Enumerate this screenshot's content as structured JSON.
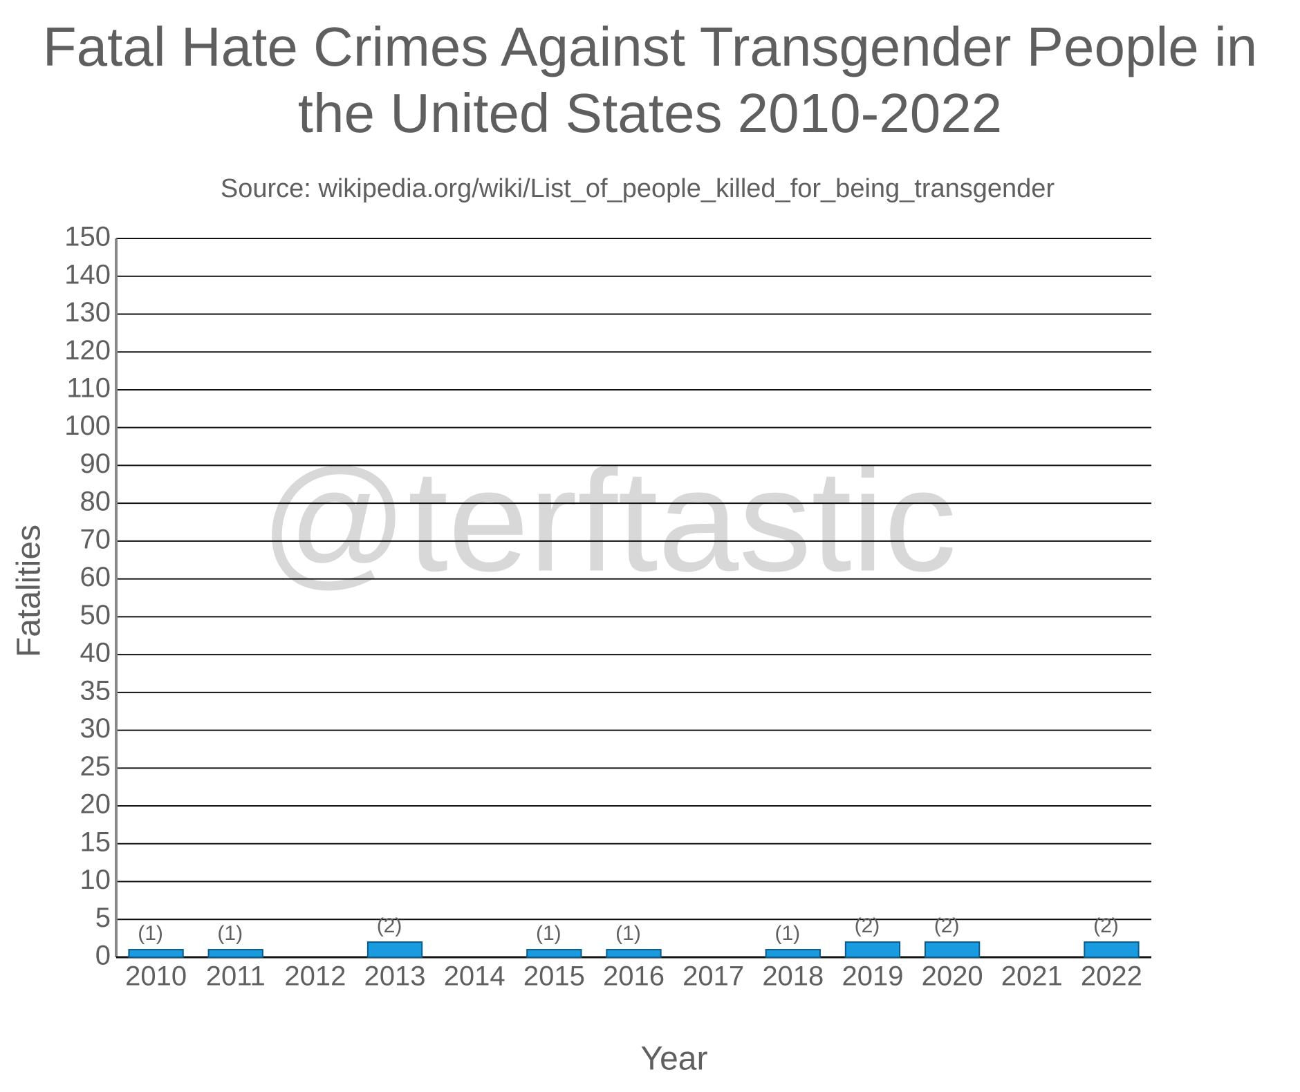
{
  "chart_data": {
    "type": "bar",
    "title": "Fatal Hate Crimes Against Transgender People in the United States 2010-2022",
    "subtitle": "Source: wikipedia.org/wiki/List_of_people_killed_for_being_transgender",
    "watermark": "@terftastic",
    "x_label": "Year",
    "y_label": "Fatalities",
    "categories": [
      "2010",
      "2011",
      "2012",
      "2013",
      "2014",
      "2015",
      "2016",
      "2017",
      "2018",
      "2019",
      "2020",
      "2021",
      "2022"
    ],
    "values": [
      1,
      1,
      0,
      2,
      0,
      1,
      1,
      0,
      1,
      2,
      2,
      0,
      2
    ],
    "value_labels": [
      "(1)",
      "(1)",
      null,
      "(2)",
      null,
      "(1)",
      "(1)",
      null,
      "(1)",
      "(2)",
      "(2)",
      null,
      "(2)"
    ],
    "color": "#1a9be0",
    "ylim": [
      0,
      150
    ],
    "yticks": [
      0,
      5,
      10,
      15,
      20,
      25,
      30,
      35,
      40,
      50,
      60,
      70,
      80,
      90,
      100,
      110,
      120,
      130,
      140,
      150
    ],
    "grid": true
  }
}
